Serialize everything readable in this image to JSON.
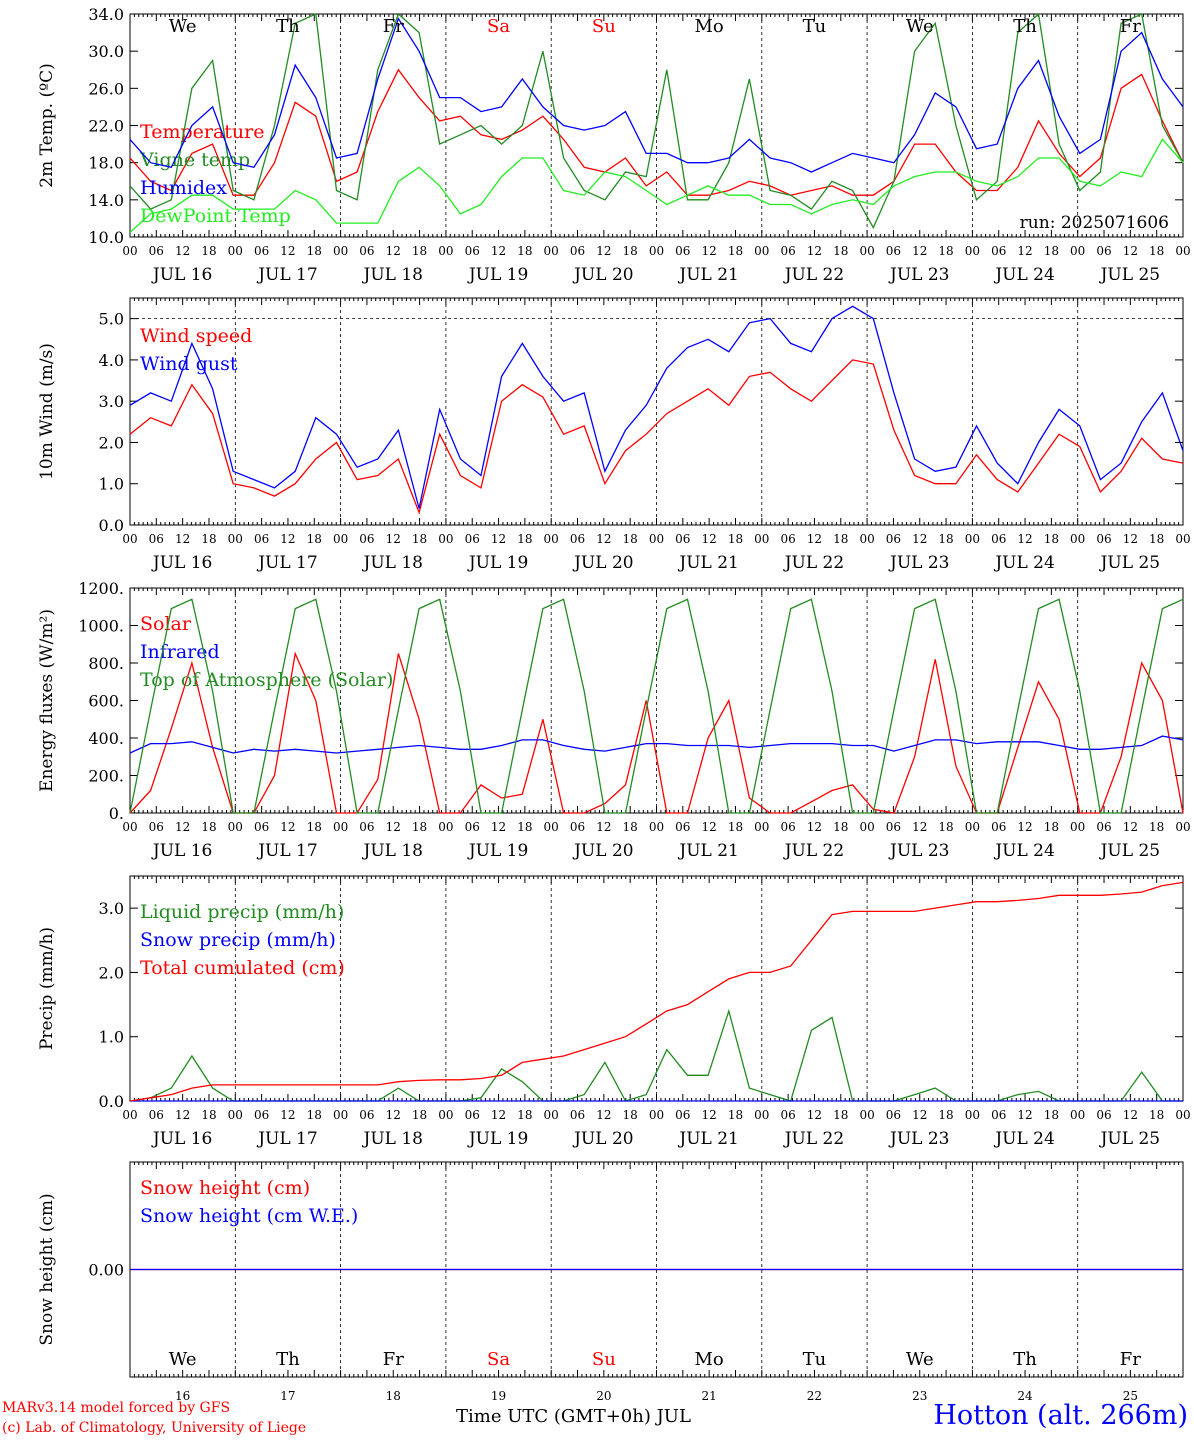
{
  "colors": {
    "red": "#ff0000",
    "green": "#228b22",
    "blue": "#0000ff",
    "lightgreen": "#22ee22",
    "grey": "#555555",
    "weekday": "#000000",
    "weekend": "#ff0000"
  },
  "days": {
    "weekdays": [
      "We",
      "Th",
      "Fr",
      "Sa",
      "Su",
      "Mo",
      "Tu",
      "We",
      "Th",
      "Fr"
    ],
    "weekend_flags": [
      false,
      false,
      false,
      true,
      true,
      false,
      false,
      false,
      false,
      false
    ],
    "dates": [
      "JUL 16",
      "JUL 17",
      "JUL 18",
      "JUL 19",
      "JUL 20",
      "JUL 21",
      "JUL 22",
      "JUL 23",
      "JUL 24",
      "JUL 25"
    ],
    "day_numbers": [
      "16",
      "17",
      "18",
      "19",
      "20",
      "21",
      "22",
      "23",
      "24",
      "25"
    ],
    "hour_ticks": [
      "00",
      "06",
      "12",
      "18"
    ],
    "final_tick": "00"
  },
  "run_label": "run: 2025071606",
  "footer": {
    "model": "MARv3.14 model forced by GFS",
    "copyright": "(c) Lab. of Climatology, University of Liege",
    "xlabel": "Time UTC (GMT+0h) JUL",
    "station": "Hotton (alt. 266m)"
  },
  "chart_data": [
    {
      "type": "line",
      "ylabel": "2m Temp. (ºC)",
      "ylim": [
        10,
        34
      ],
      "yticks": [
        "10.0",
        "14.0",
        "18.0",
        "22.0",
        "26.0",
        "30.0",
        "34.0"
      ],
      "series": [
        {
          "name": "Temperature",
          "color": "#ff0000",
          "values": [
            18.5,
            16,
            15,
            19,
            20,
            14.5,
            14.5,
            18,
            24.5,
            23,
            16,
            17,
            23.5,
            28,
            25,
            22.5,
            23,
            21,
            20.5,
            21.5,
            23,
            20.5,
            17.5,
            17,
            18.5,
            15.5,
            17,
            14.5,
            14.5,
            15,
            16,
            15.5,
            14.5,
            15,
            15.5,
            14.5,
            14.5,
            16,
            20,
            20,
            17,
            15,
            15,
            17.5,
            22.5,
            19,
            16.5,
            18.5,
            26,
            27.5,
            22.5,
            18
          ]
        },
        {
          "name": "Vigne temp",
          "color": "#228b22",
          "values": [
            15.5,
            13,
            14,
            26,
            29,
            15,
            14,
            22,
            33,
            34,
            15,
            14,
            28,
            34,
            32,
            20,
            21,
            22,
            20,
            22,
            30,
            18.5,
            15,
            14,
            17,
            16.5,
            28,
            14,
            14,
            18,
            27,
            15,
            14.5,
            13,
            16,
            15,
            11,
            16,
            30,
            33,
            22,
            14,
            16,
            32,
            34,
            20,
            15,
            17,
            33,
            35,
            22,
            18
          ]
        },
        {
          "name": "Humidex",
          "color": "#0000ff",
          "values": [
            20.5,
            18,
            17.5,
            22,
            24,
            18,
            17.5,
            21,
            28.5,
            25,
            18.5,
            19,
            27,
            33.5,
            30,
            25,
            25,
            23.5,
            24,
            27,
            24,
            22,
            21.5,
            22,
            23.5,
            19,
            19,
            18,
            18,
            18.5,
            20.5,
            18.5,
            18,
            17,
            18,
            19,
            18.5,
            18,
            21,
            25.5,
            24,
            19.5,
            20,
            26,
            29,
            23,
            19,
            20.5,
            30,
            32,
            27,
            24
          ]
        },
        {
          "name": "DewPoint Temp",
          "color": "#22ee22",
          "values": [
            10.5,
            12.5,
            13,
            14.5,
            14.5,
            13,
            13,
            13,
            15,
            14,
            11.5,
            11.5,
            11.5,
            16,
            17.5,
            15.5,
            12.5,
            13.5,
            16.5,
            18.5,
            18.5,
            15,
            14.5,
            17,
            16.5,
            15,
            13.5,
            14.5,
            15.5,
            14.5,
            14.5,
            13.5,
            13.5,
            12.5,
            13.5,
            14,
            13.5,
            15.5,
            16.5,
            17,
            17,
            16,
            15.5,
            16.5,
            18.5,
            18.5,
            16,
            15.5,
            17,
            16.5,
            20.5,
            18
          ]
        }
      ]
    },
    {
      "type": "line",
      "ylabel": "10m Wind (m/s)",
      "ylim": [
        0,
        5.5
      ],
      "yticks": [
        "0.0",
        "1.0",
        "2.0",
        "3.0",
        "4.0",
        "5.0"
      ],
      "series": [
        {
          "name": "Wind speed",
          "color": "#ff0000",
          "values": [
            2.2,
            2.6,
            2.4,
            3.4,
            2.7,
            1.0,
            0.9,
            0.7,
            1.0,
            1.6,
            2.0,
            1.1,
            1.2,
            1.6,
            0.3,
            2.2,
            1.2,
            0.9,
            3.0,
            3.4,
            3.1,
            2.2,
            2.4,
            1.0,
            1.8,
            2.2,
            2.7,
            3.0,
            3.3,
            2.9,
            3.6,
            3.7,
            3.3,
            3.0,
            3.5,
            4.0,
            3.9,
            2.3,
            1.2,
            1.0,
            1.0,
            1.7,
            1.1,
            0.8,
            1.5,
            2.2,
            1.9,
            0.8,
            1.3,
            2.1,
            1.6,
            1.5
          ]
        },
        {
          "name": "Wind gust",
          "color": "#0000ff",
          "values": [
            2.9,
            3.2,
            3.0,
            4.4,
            3.3,
            1.3,
            1.1,
            0.9,
            1.3,
            2.6,
            2.2,
            1.4,
            1.6,
            2.3,
            0.4,
            2.8,
            1.6,
            1.2,
            3.6,
            4.4,
            3.6,
            3.0,
            3.2,
            1.3,
            2.3,
            2.9,
            3.8,
            4.3,
            4.5,
            4.2,
            4.9,
            5.0,
            4.4,
            4.2,
            5.0,
            5.3,
            5.0,
            3.2,
            1.6,
            1.3,
            1.4,
            2.4,
            1.5,
            1.0,
            2.0,
            2.8,
            2.4,
            1.1,
            1.5,
            2.5,
            3.2,
            1.8
          ]
        }
      ]
    },
    {
      "type": "line",
      "ylabel": "Energy fluxes (W/m²)",
      "ylim": [
        0,
        1200
      ],
      "yticks": [
        "0.",
        "200.",
        "400.",
        "600.",
        "800.",
        "1000.",
        "1200."
      ],
      "series": [
        {
          "name": "Solar",
          "color": "#ff0000",
          "values": [
            0,
            120,
            450,
            800,
            350,
            0,
            0,
            200,
            850,
            600,
            0,
            0,
            180,
            850,
            500,
            0,
            0,
            150,
            80,
            100,
            500,
            0,
            0,
            50,
            150,
            600,
            0,
            0,
            400,
            600,
            80,
            0,
            0,
            60,
            120,
            150,
            20,
            0,
            300,
            820,
            250,
            0,
            0,
            350,
            700,
            500,
            0,
            0,
            300,
            800,
            600,
            0
          ]
        },
        {
          "name": "Infrared",
          "color": "#0000ff",
          "values": [
            320,
            370,
            370,
            380,
            350,
            320,
            340,
            330,
            340,
            330,
            320,
            330,
            340,
            350,
            360,
            350,
            340,
            340,
            360,
            390,
            390,
            360,
            340,
            330,
            350,
            370,
            370,
            360,
            360,
            360,
            350,
            360,
            370,
            370,
            370,
            360,
            360,
            330,
            360,
            390,
            390,
            370,
            380,
            380,
            380,
            360,
            340,
            340,
            350,
            360,
            410,
            390
          ]
        },
        {
          "name": "Top of Atmosphere (Solar)",
          "color": "#228b22",
          "values": [
            0,
            550,
            1090,
            1140,
            650,
            0,
            0,
            550,
            1090,
            1140,
            650,
            0,
            0,
            550,
            1090,
            1140,
            650,
            0,
            0,
            550,
            1090,
            1140,
            650,
            0,
            0,
            550,
            1090,
            1140,
            650,
            0,
            0,
            550,
            1090,
            1140,
            650,
            0,
            0,
            550,
            1090,
            1140,
            650,
            0,
            0,
            550,
            1090,
            1140,
            650,
            0,
            0,
            550,
            1090,
            1140
          ]
        }
      ]
    },
    {
      "type": "line",
      "ylabel": "Precip (mm/h)",
      "ylim": [
        0,
        3.5
      ],
      "yticks": [
        "0.0",
        "1.0",
        "2.0",
        "3.0"
      ],
      "series": [
        {
          "name": "Liquid precip (mm/h)",
          "color": "#228b22",
          "values": [
            0,
            0.05,
            0.2,
            0.7,
            0.2,
            0,
            0,
            0,
            0,
            0,
            0,
            0,
            0,
            0.2,
            0,
            0,
            0,
            0.05,
            0.5,
            0.3,
            0,
            0,
            0.1,
            0.6,
            0,
            0.1,
            0.8,
            0.4,
            0.4,
            1.4,
            0.2,
            0.1,
            0,
            1.1,
            1.3,
            0,
            0,
            0,
            0.1,
            0.2,
            0,
            0,
            0,
            0.1,
            0.15,
            0,
            0,
            0,
            0,
            0.45,
            0,
            0
          ]
        },
        {
          "name": "Snow precip (mm/h)",
          "color": "#0000ff",
          "values": [
            0,
            0,
            0,
            0,
            0,
            0,
            0,
            0,
            0,
            0,
            0,
            0,
            0,
            0,
            0,
            0,
            0,
            0,
            0,
            0,
            0,
            0,
            0,
            0,
            0,
            0,
            0,
            0,
            0,
            0,
            0,
            0,
            0,
            0,
            0,
            0,
            0,
            0,
            0,
            0,
            0,
            0,
            0,
            0,
            0,
            0,
            0,
            0,
            0,
            0,
            0,
            0
          ]
        },
        {
          "name": "Total cumulated (cm)",
          "color": "#ff0000",
          "values": [
            0,
            0.05,
            0.1,
            0.2,
            0.25,
            0.25,
            0.25,
            0.25,
            0.25,
            0.25,
            0.25,
            0.25,
            0.25,
            0.3,
            0.32,
            0.33,
            0.33,
            0.35,
            0.4,
            0.6,
            0.65,
            0.7,
            0.8,
            0.9,
            1.0,
            1.2,
            1.4,
            1.5,
            1.7,
            1.9,
            2.0,
            2.0,
            2.1,
            2.5,
            2.9,
            2.95,
            2.95,
            2.95,
            2.95,
            3.0,
            3.05,
            3.1,
            3.1,
            3.12,
            3.15,
            3.2,
            3.2,
            3.2,
            3.22,
            3.25,
            3.35,
            3.4
          ]
        }
      ]
    },
    {
      "type": "line",
      "ylabel": "Snow height (cm)",
      "ylim": [
        -1,
        1
      ],
      "yticks": [
        "0.00"
      ],
      "series": [
        {
          "name": "Snow height (cm)",
          "color": "#ff0000",
          "values": [
            0,
            0,
            0,
            0,
            0,
            0,
            0,
            0,
            0,
            0,
            0,
            0,
            0,
            0,
            0,
            0,
            0,
            0,
            0,
            0,
            0,
            0,
            0,
            0,
            0,
            0,
            0,
            0,
            0,
            0,
            0,
            0,
            0,
            0,
            0,
            0,
            0,
            0,
            0,
            0,
            0,
            0,
            0,
            0,
            0,
            0,
            0,
            0,
            0,
            0,
            0,
            0
          ]
        },
        {
          "name": "Snow height (cm W.E.)",
          "color": "#0000ff",
          "values": [
            0,
            0,
            0,
            0,
            0,
            0,
            0,
            0,
            0,
            0,
            0,
            0,
            0,
            0,
            0,
            0,
            0,
            0,
            0,
            0,
            0,
            0,
            0,
            0,
            0,
            0,
            0,
            0,
            0,
            0,
            0,
            0,
            0,
            0,
            0,
            0,
            0,
            0,
            0,
            0,
            0,
            0,
            0,
            0,
            0,
            0,
            0,
            0,
            0,
            0,
            0,
            0
          ]
        }
      ]
    }
  ]
}
